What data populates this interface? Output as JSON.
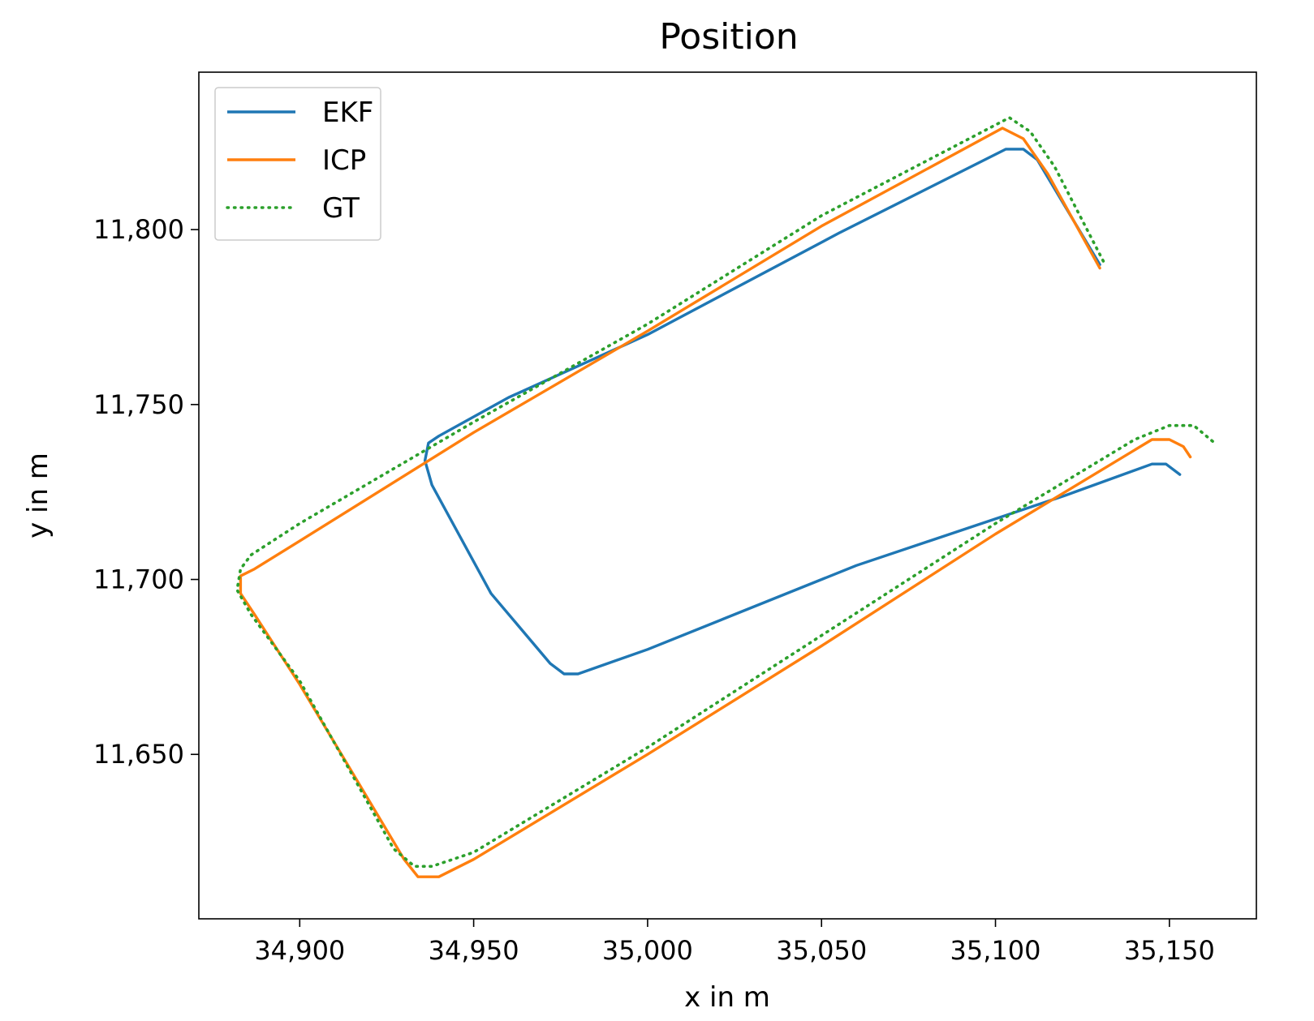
{
  "chart_data": {
    "type": "line",
    "title": "Position",
    "xlabel": "x in m",
    "ylabel": "y in m",
    "xlim": [
      34871,
      35175
    ],
    "ylim": [
      11603,
      11845
    ],
    "xticks": [
      34900,
      34950,
      35000,
      35050,
      35100,
      35150
    ],
    "xtick_labels": [
      "34,900",
      "34,950",
      "35,000",
      "35,050",
      "35,100",
      "35,150"
    ],
    "yticks": [
      11650,
      11700,
      11750,
      11800
    ],
    "ytick_labels": [
      "11,650",
      "11,700",
      "11,750",
      "11,800"
    ],
    "grid": false,
    "legend_position": "top-left",
    "series": [
      {
        "name": "EKF",
        "color": "#1f77b4",
        "style": "solid",
        "x": [
          35130,
          35112,
          35108,
          35103,
          35055,
          35000,
          34960,
          34940,
          34937,
          34936,
          34938,
          34955,
          34972,
          34976,
          34980,
          35000,
          35060,
          35120,
          35145,
          35149,
          35153
        ],
        "y": [
          11790,
          11820,
          11823,
          11823,
          11799,
          11770,
          11752,
          11741,
          11739,
          11734,
          11727,
          11696,
          11676,
          11673,
          11673,
          11680,
          11704,
          11724,
          11733,
          11733,
          11730
        ]
      },
      {
        "name": "ICP",
        "color": "#ff7f0e",
        "style": "solid",
        "x": [
          35130,
          35115,
          35108,
          35102,
          35050,
          35000,
          34950,
          34900,
          34887,
          34883,
          34883,
          34887,
          34900,
          34930,
          34934,
          34940,
          34950,
          35000,
          35050,
          35100,
          35145,
          35150,
          35154,
          35156
        ],
        "y": [
          11789,
          11816,
          11826,
          11829,
          11801,
          11771,
          11742,
          11711,
          11703,
          11701,
          11696,
          11690,
          11670,
          11620,
          11615,
          11615,
          11620,
          11650,
          11681,
          11713,
          11740,
          11740,
          11738,
          11735
        ]
      },
      {
        "name": "GT",
        "color": "#2ca02c",
        "style": "dotted",
        "x": [
          35131,
          35117,
          35110,
          35104,
          35050,
          35000,
          34950,
          34900,
          34886,
          34883,
          34882,
          34886,
          34900,
          34927,
          34933,
          34938,
          34950,
          35000,
          35050,
          35100,
          35140,
          35150,
          35157,
          35163
        ],
        "y": [
          11791,
          11818,
          11828,
          11832,
          11804,
          11773,
          11745,
          11716,
          11707,
          11703,
          11697,
          11690,
          11671,
          11623,
          11618,
          11618,
          11622,
          11652,
          11684,
          11716,
          11740,
          11744,
          11744,
          11739
        ]
      }
    ]
  }
}
